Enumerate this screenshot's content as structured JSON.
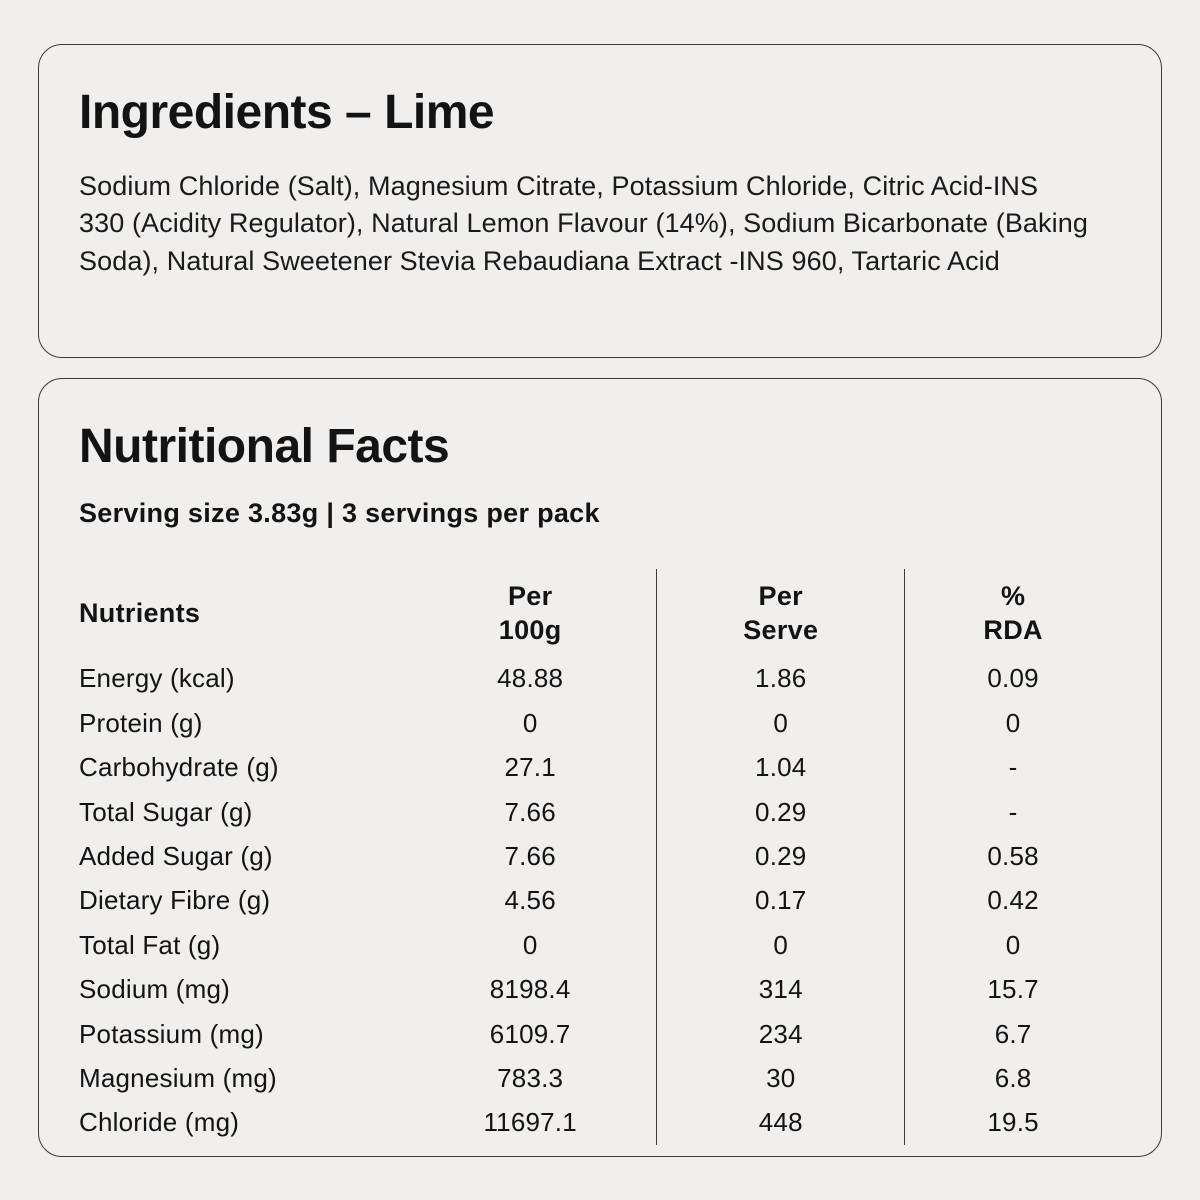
{
  "ingredients": {
    "title": "Ingredients – Lime",
    "text": "Sodium Chloride (Salt), Magnesium Citrate, Potassium Chloride, Citric Acid-INS 330 (Acidity Regulator), Natural Lemon Flavour (14%), Sodium Bicarbonate (Baking Soda), Natural Sweetener Stevia Rebaudiana Extract -INS 960, Tartaric Acid"
  },
  "nutrition": {
    "title": "Nutritional Facts",
    "serving_info": "Serving size 3.83g | 3 servings per pack",
    "table": {
      "columns": [
        "Nutrients",
        "Per\n100g",
        "Per\nServe",
        "%\nRDA"
      ],
      "rows": [
        [
          "Energy (kcal)",
          "48.88",
          "1.86",
          "0.09"
        ],
        [
          "Protein (g)",
          "0",
          "0",
          "0"
        ],
        [
          "Carbohydrate (g)",
          "27.1",
          "1.04",
          "-"
        ],
        [
          "Total Sugar (g)",
          "7.66",
          "0.29",
          "-"
        ],
        [
          "Added Sugar (g)",
          "7.66",
          "0.29",
          "0.58"
        ],
        [
          "Dietary Fibre (g)",
          "4.56",
          "0.17",
          "0.42"
        ],
        [
          "Total Fat (g)",
          "0",
          "0",
          "0"
        ],
        [
          "Sodium (mg)",
          "8198.4",
          "314",
          "15.7"
        ],
        [
          "Potassium (mg)",
          "6109.7",
          "234",
          "6.7"
        ],
        [
          "Magnesium (mg)",
          "783.3",
          "30",
          "6.8"
        ],
        [
          "Chloride (mg)",
          "11697.1",
          "448",
          "19.5"
        ]
      ]
    }
  },
  "colors": {
    "background": "#f0efed",
    "border": "#3b3b3b",
    "text": "#131313"
  }
}
